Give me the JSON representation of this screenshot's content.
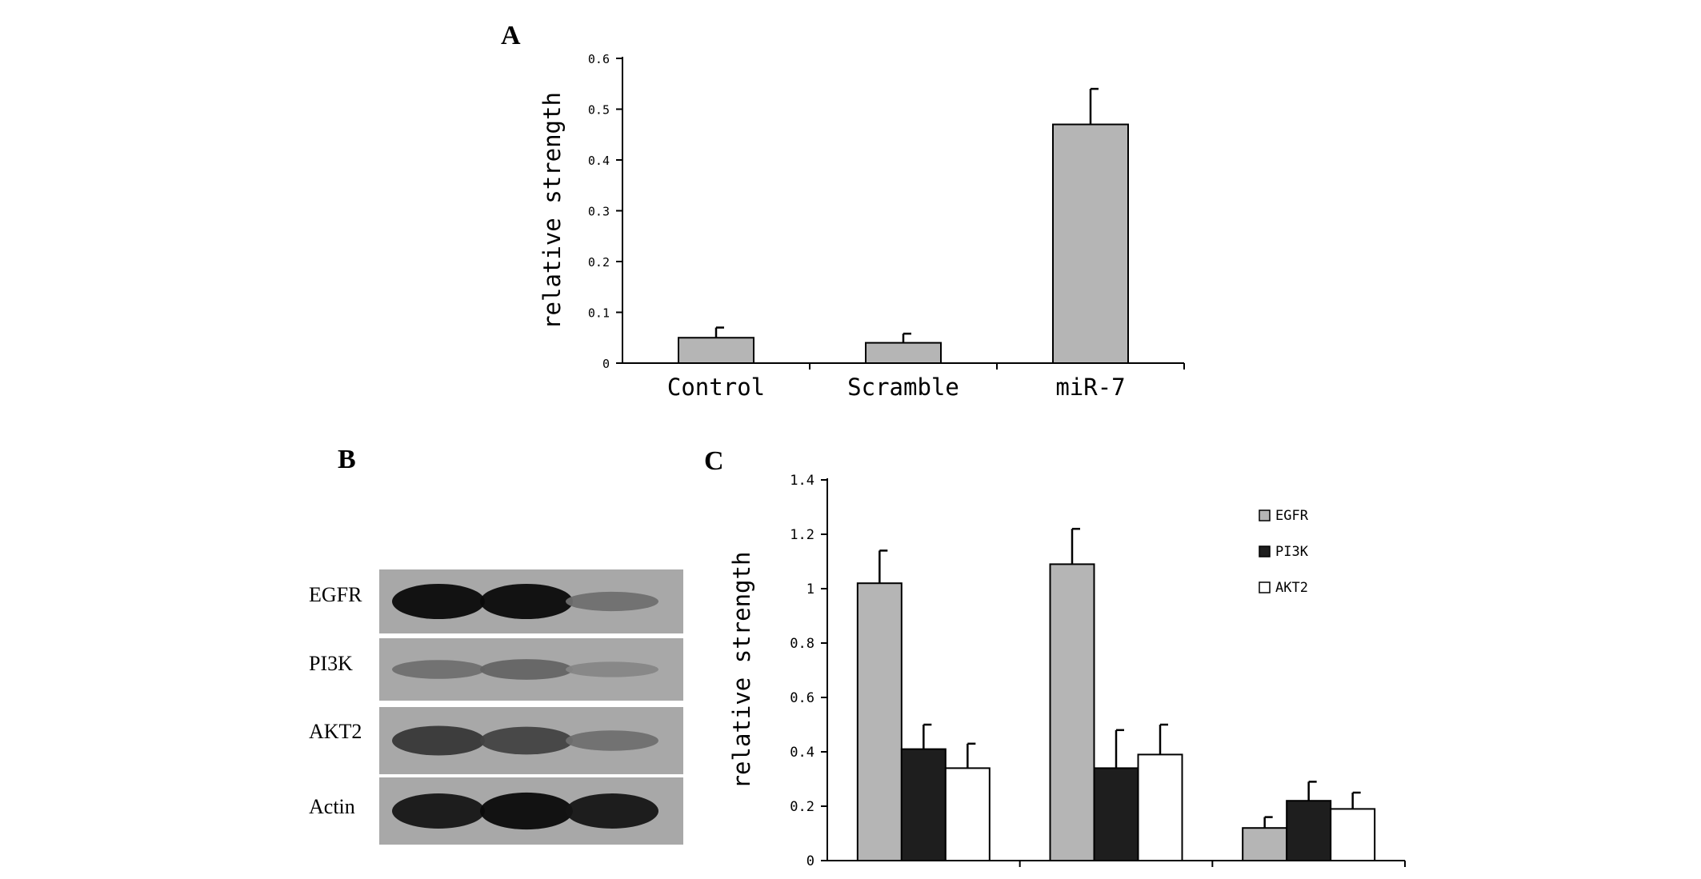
{
  "panels": {
    "a": "A",
    "b": "B",
    "c": "C"
  },
  "chart_data": [
    {
      "type": "bar",
      "panel": "A",
      "categories": [
        "Control",
        "Scramble",
        "miR-7"
      ],
      "series": [
        {
          "values": [
            0.05,
            0.04,
            0.47
          ],
          "errors": [
            0.02,
            0.018,
            0.07
          ],
          "color": "#b5b5b5"
        }
      ],
      "ylabel": "relative strength",
      "xlabel": "",
      "ylim": [
        0,
        0.6
      ],
      "yticks": [
        "0",
        "0.1",
        "0.2",
        "0.3",
        "0.4",
        "0.5",
        "0.6"
      ],
      "grid": false
    },
    {
      "type": "bar",
      "panel": "C",
      "categories": [
        "",
        "",
        ""
      ],
      "series": [
        {
          "name": "EGFR",
          "values": [
            1.02,
            1.09,
            0.12
          ],
          "errors": [
            0.12,
            0.13,
            0.04
          ],
          "color": "#b5b5b5"
        },
        {
          "name": "PI3K",
          "values": [
            0.41,
            0.34,
            0.22
          ],
          "errors": [
            0.09,
            0.14,
            0.07
          ],
          "color": "#1e1e1e"
        },
        {
          "name": "AKT2",
          "values": [
            0.34,
            0.39,
            0.19
          ],
          "errors": [
            0.09,
            0.11,
            0.06
          ],
          "color": "#ffffff"
        }
      ],
      "ylabel": "relative strength",
      "xlabel": "",
      "ylim": [
        0,
        1.4
      ],
      "yticks": [
        "0",
        "0.2",
        "0.4",
        "0.6",
        "0.8",
        "1",
        "1.2",
        "1.4"
      ],
      "legend": "top-right",
      "grid": false
    }
  ],
  "blot": {
    "rows": [
      "EGFR",
      "PI3K",
      "AKT2",
      "Actin"
    ],
    "band_intensity": [
      [
        1.0,
        1.0,
        0.55
      ],
      [
        0.55,
        0.6,
        0.45
      ],
      [
        0.8,
        0.75,
        0.55
      ],
      [
        0.95,
        1.0,
        0.95
      ]
    ]
  }
}
